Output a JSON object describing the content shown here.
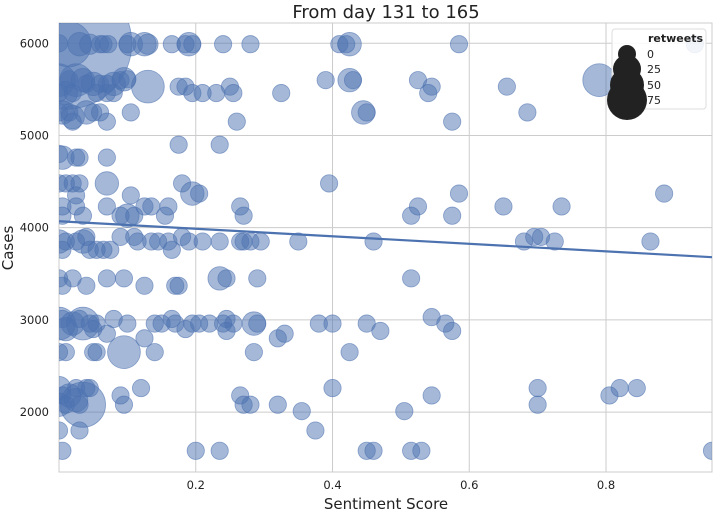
{
  "chart_data": {
    "type": "scatter",
    "title": "From day 131 to 165",
    "xlabel": "Sentiment Score",
    "ylabel": "Cases",
    "xlim": [
      0.0,
      0.955
    ],
    "ylim": [
      1350,
      6220
    ],
    "xticks": [
      0.2,
      0.4,
      0.6,
      0.8
    ],
    "xtick_labels": [
      "0.2",
      "0.4",
      "0.6",
      "0.8"
    ],
    "yticks": [
      2000,
      3000,
      4000,
      5000,
      6000
    ],
    "ytick_labels": [
      "2000",
      "3000",
      "4000",
      "5000",
      "6000"
    ],
    "grid": true,
    "color": "#4c72b0",
    "point_alpha": 0.5,
    "regression_line": {
      "x": [
        0.0,
        0.955
      ],
      "y": [
        4070,
        3680
      ]
    },
    "legend": {
      "title": "retweets",
      "placement": "top-right",
      "entries": [
        {
          "label": "0",
          "value": 0
        },
        {
          "label": "25",
          "value": 25
        },
        {
          "label": "50",
          "value": 50
        },
        {
          "label": "75",
          "value": 75
        }
      ]
    },
    "points": [
      {
        "x": 0.0,
        "y": 6000,
        "r": 3
      },
      {
        "x": 0.01,
        "y": 6000,
        "r": 40
      },
      {
        "x": 0.014,
        "y": 5990,
        "r": 12
      },
      {
        "x": 0.03,
        "y": 5990,
        "r": 5
      },
      {
        "x": 0.045,
        "y": 5990,
        "r": 4
      },
      {
        "x": 0.06,
        "y": 5990,
        "r": 3
      },
      {
        "x": 0.065,
        "y": 5990,
        "r": 3
      },
      {
        "x": 0.072,
        "y": 5990,
        "r": 3
      },
      {
        "x": 0.1,
        "y": 5990,
        "r": 3
      },
      {
        "x": 0.105,
        "y": 5990,
        "r": 5
      },
      {
        "x": 0.125,
        "y": 5990,
        "r": 5
      },
      {
        "x": 0.13,
        "y": 5990,
        "r": 4
      },
      {
        "x": 0.165,
        "y": 5990,
        "r": 3
      },
      {
        "x": 0.185,
        "y": 5990,
        "r": 3
      },
      {
        "x": 0.19,
        "y": 5990,
        "r": 5
      },
      {
        "x": 0.195,
        "y": 5990,
        "r": 3
      },
      {
        "x": 0.24,
        "y": 5990,
        "r": 3
      },
      {
        "x": 0.28,
        "y": 5990,
        "r": 3
      },
      {
        "x": 0.41,
        "y": 5990,
        "r": 3
      },
      {
        "x": 0.42,
        "y": 5990,
        "r": 3
      },
      {
        "x": 0.425,
        "y": 5990,
        "r": 5
      },
      {
        "x": 0.585,
        "y": 5990,
        "r": 3
      },
      {
        "x": 0.93,
        "y": 5990,
        "r": 3
      },
      {
        "x": 0.0,
        "y": 5600,
        "r": 8
      },
      {
        "x": 0.015,
        "y": 5610,
        "r": 3
      },
      {
        "x": 0.025,
        "y": 5600,
        "r": 8
      },
      {
        "x": 0.035,
        "y": 5600,
        "r": 5
      },
      {
        "x": 0.04,
        "y": 5560,
        "r": 3
      },
      {
        "x": 0.05,
        "y": 5560,
        "r": 5
      },
      {
        "x": 0.06,
        "y": 5560,
        "r": 3
      },
      {
        "x": 0.07,
        "y": 5560,
        "r": 3
      },
      {
        "x": 0.08,
        "y": 5560,
        "r": 5
      },
      {
        "x": 0.09,
        "y": 5600,
        "r": 3
      },
      {
        "x": 0.095,
        "y": 5610,
        "r": 5
      },
      {
        "x": 0.1,
        "y": 5610,
        "r": 3
      },
      {
        "x": 0.13,
        "y": 5530,
        "r": 8
      },
      {
        "x": 0.175,
        "y": 5530,
        "r": 3
      },
      {
        "x": 0.185,
        "y": 5530,
        "r": 3
      },
      {
        "x": 0.195,
        "y": 5460,
        "r": 3
      },
      {
        "x": 0.21,
        "y": 5460,
        "r": 3
      },
      {
        "x": 0.23,
        "y": 5460,
        "r": 3
      },
      {
        "x": 0.25,
        "y": 5530,
        "r": 3
      },
      {
        "x": 0.255,
        "y": 5460,
        "r": 3
      },
      {
        "x": 0.325,
        "y": 5460,
        "r": 3
      },
      {
        "x": 0.39,
        "y": 5600,
        "r": 3
      },
      {
        "x": 0.425,
        "y": 5600,
        "r": 5
      },
      {
        "x": 0.43,
        "y": 5600,
        "r": 3
      },
      {
        "x": 0.525,
        "y": 5600,
        "r": 3
      },
      {
        "x": 0.54,
        "y": 5460,
        "r": 3
      },
      {
        "x": 0.545,
        "y": 5530,
        "r": 3
      },
      {
        "x": 0.655,
        "y": 5530,
        "r": 3
      },
      {
        "x": 0.79,
        "y": 5600,
        "r": 8
      },
      {
        "x": 0.82,
        "y": 5600,
        "r": 3
      },
      {
        "x": 0.0,
        "y": 5460,
        "r": 3
      },
      {
        "x": 0.01,
        "y": 5460,
        "r": 5
      },
      {
        "x": 0.02,
        "y": 5460,
        "r": 3
      },
      {
        "x": 0.055,
        "y": 5460,
        "r": 3
      },
      {
        "x": 0.07,
        "y": 5460,
        "r": 3
      },
      {
        "x": 0.08,
        "y": 5460,
        "r": 3
      },
      {
        "x": 0.0,
        "y": 5250,
        "r": 3
      },
      {
        "x": 0.005,
        "y": 5250,
        "r": 5
      },
      {
        "x": 0.015,
        "y": 5250,
        "r": 3
      },
      {
        "x": 0.02,
        "y": 5200,
        "r": 5
      },
      {
        "x": 0.04,
        "y": 5250,
        "r": 5
      },
      {
        "x": 0.05,
        "y": 5250,
        "r": 3
      },
      {
        "x": 0.06,
        "y": 5250,
        "r": 3
      },
      {
        "x": 0.07,
        "y": 5150,
        "r": 3
      },
      {
        "x": 0.105,
        "y": 5250,
        "r": 3
      },
      {
        "x": 0.26,
        "y": 5150,
        "r": 3
      },
      {
        "x": 0.445,
        "y": 5250,
        "r": 5
      },
      {
        "x": 0.45,
        "y": 5250,
        "r": 3
      },
      {
        "x": 0.575,
        "y": 5150,
        "r": 3
      },
      {
        "x": 0.685,
        "y": 5250,
        "r": 3
      },
      {
        "x": 0.02,
        "y": 5150,
        "r": 3
      },
      {
        "x": 0.0,
        "y": 4800,
        "r": 3
      },
      {
        "x": 0.005,
        "y": 4760,
        "r": 5
      },
      {
        "x": 0.025,
        "y": 4760,
        "r": 3
      },
      {
        "x": 0.03,
        "y": 4760,
        "r": 3
      },
      {
        "x": 0.07,
        "y": 4760,
        "r": 3
      },
      {
        "x": 0.175,
        "y": 4900,
        "r": 3
      },
      {
        "x": 0.235,
        "y": 4900,
        "r": 3
      },
      {
        "x": 0.0,
        "y": 4480,
        "r": 3
      },
      {
        "x": 0.01,
        "y": 4480,
        "r": 3
      },
      {
        "x": 0.02,
        "y": 4480,
        "r": 3
      },
      {
        "x": 0.03,
        "y": 4480,
        "r": 3
      },
      {
        "x": 0.07,
        "y": 4480,
        "r": 5
      },
      {
        "x": 0.18,
        "y": 4480,
        "r": 3
      },
      {
        "x": 0.395,
        "y": 4480,
        "r": 3
      },
      {
        "x": 0.025,
        "y": 4350,
        "r": 3
      },
      {
        "x": 0.105,
        "y": 4350,
        "r": 3
      },
      {
        "x": 0.195,
        "y": 4370,
        "r": 5
      },
      {
        "x": 0.205,
        "y": 4370,
        "r": 3
      },
      {
        "x": 0.585,
        "y": 4370,
        "r": 3
      },
      {
        "x": 0.885,
        "y": 4370,
        "r": 3
      },
      {
        "x": 0.005,
        "y": 4230,
        "r": 3
      },
      {
        "x": 0.025,
        "y": 4230,
        "r": 3
      },
      {
        "x": 0.07,
        "y": 4230,
        "r": 3
      },
      {
        "x": 0.125,
        "y": 4230,
        "r": 3
      },
      {
        "x": 0.135,
        "y": 4230,
        "r": 3
      },
      {
        "x": 0.16,
        "y": 4230,
        "r": 3
      },
      {
        "x": 0.265,
        "y": 4230,
        "r": 3
      },
      {
        "x": 0.515,
        "y": 4130,
        "r": 3
      },
      {
        "x": 0.525,
        "y": 4230,
        "r": 3
      },
      {
        "x": 0.575,
        "y": 4130,
        "r": 3
      },
      {
        "x": 0.65,
        "y": 4230,
        "r": 3
      },
      {
        "x": 0.735,
        "y": 4230,
        "r": 3
      },
      {
        "x": 0.005,
        "y": 4130,
        "r": 3
      },
      {
        "x": 0.035,
        "y": 4130,
        "r": 3
      },
      {
        "x": 0.09,
        "y": 4130,
        "r": 3
      },
      {
        "x": 0.1,
        "y": 4130,
        "r": 5
      },
      {
        "x": 0.11,
        "y": 4130,
        "r": 3
      },
      {
        "x": 0.155,
        "y": 4130,
        "r": 3
      },
      {
        "x": 0.27,
        "y": 4130,
        "r": 3
      },
      {
        "x": 0.0,
        "y": 3850,
        "r": 5
      },
      {
        "x": 0.005,
        "y": 3760,
        "r": 3
      },
      {
        "x": 0.01,
        "y": 3850,
        "r": 3
      },
      {
        "x": 0.025,
        "y": 3850,
        "r": 3
      },
      {
        "x": 0.035,
        "y": 3850,
        "r": 5
      },
      {
        "x": 0.04,
        "y": 3900,
        "r": 3
      },
      {
        "x": 0.045,
        "y": 3760,
        "r": 3
      },
      {
        "x": 0.055,
        "y": 3760,
        "r": 3
      },
      {
        "x": 0.065,
        "y": 3760,
        "r": 3
      },
      {
        "x": 0.075,
        "y": 3760,
        "r": 3
      },
      {
        "x": 0.09,
        "y": 3900,
        "r": 3
      },
      {
        "x": 0.11,
        "y": 3900,
        "r": 3
      },
      {
        "x": 0.115,
        "y": 3850,
        "r": 3
      },
      {
        "x": 0.135,
        "y": 3850,
        "r": 3
      },
      {
        "x": 0.145,
        "y": 3850,
        "r": 3
      },
      {
        "x": 0.16,
        "y": 3850,
        "r": 3
      },
      {
        "x": 0.165,
        "y": 3760,
        "r": 3
      },
      {
        "x": 0.18,
        "y": 3900,
        "r": 3
      },
      {
        "x": 0.19,
        "y": 3850,
        "r": 3
      },
      {
        "x": 0.21,
        "y": 3850,
        "r": 3
      },
      {
        "x": 0.235,
        "y": 3850,
        "r": 3
      },
      {
        "x": 0.265,
        "y": 3850,
        "r": 3
      },
      {
        "x": 0.27,
        "y": 3850,
        "r": 3
      },
      {
        "x": 0.28,
        "y": 3850,
        "r": 3
      },
      {
        "x": 0.295,
        "y": 3850,
        "r": 3
      },
      {
        "x": 0.35,
        "y": 3850,
        "r": 3
      },
      {
        "x": 0.46,
        "y": 3850,
        "r": 3
      },
      {
        "x": 0.68,
        "y": 3850,
        "r": 3
      },
      {
        "x": 0.695,
        "y": 3900,
        "r": 3
      },
      {
        "x": 0.705,
        "y": 3900,
        "r": 3
      },
      {
        "x": 0.725,
        "y": 3850,
        "r": 3
      },
      {
        "x": 0.865,
        "y": 3850,
        "r": 3
      },
      {
        "x": 0.0,
        "y": 3450,
        "r": 3
      },
      {
        "x": 0.005,
        "y": 3370,
        "r": 3
      },
      {
        "x": 0.02,
        "y": 3450,
        "r": 3
      },
      {
        "x": 0.04,
        "y": 3370,
        "r": 3
      },
      {
        "x": 0.07,
        "y": 3450,
        "r": 3
      },
      {
        "x": 0.095,
        "y": 3450,
        "r": 3
      },
      {
        "x": 0.125,
        "y": 3370,
        "r": 3
      },
      {
        "x": 0.17,
        "y": 3370,
        "r": 3
      },
      {
        "x": 0.175,
        "y": 3370,
        "r": 3
      },
      {
        "x": 0.235,
        "y": 3450,
        "r": 5
      },
      {
        "x": 0.245,
        "y": 3450,
        "r": 3
      },
      {
        "x": 0.29,
        "y": 3450,
        "r": 3
      },
      {
        "x": 0.515,
        "y": 3450,
        "r": 3
      },
      {
        "x": 0.0,
        "y": 2960,
        "r": 8
      },
      {
        "x": 0.005,
        "y": 3010,
        "r": 3
      },
      {
        "x": 0.01,
        "y": 2900,
        "r": 5
      },
      {
        "x": 0.02,
        "y": 2960,
        "r": 5
      },
      {
        "x": 0.03,
        "y": 3010,
        "r": 3
      },
      {
        "x": 0.035,
        "y": 2960,
        "r": 8
      },
      {
        "x": 0.045,
        "y": 2960,
        "r": 3
      },
      {
        "x": 0.05,
        "y": 2900,
        "r": 3
      },
      {
        "x": 0.055,
        "y": 2960,
        "r": 3
      },
      {
        "x": 0.07,
        "y": 2850,
        "r": 3
      },
      {
        "x": 0.08,
        "y": 3010,
        "r": 3
      },
      {
        "x": 0.1,
        "y": 2960,
        "r": 3
      },
      {
        "x": 0.125,
        "y": 2800,
        "r": 3
      },
      {
        "x": 0.14,
        "y": 2960,
        "r": 3
      },
      {
        "x": 0.15,
        "y": 2960,
        "r": 3
      },
      {
        "x": 0.165,
        "y": 3010,
        "r": 3
      },
      {
        "x": 0.17,
        "y": 2960,
        "r": 3
      },
      {
        "x": 0.185,
        "y": 2900,
        "r": 3
      },
      {
        "x": 0.195,
        "y": 2960,
        "r": 3
      },
      {
        "x": 0.205,
        "y": 2960,
        "r": 3
      },
      {
        "x": 0.22,
        "y": 2960,
        "r": 3
      },
      {
        "x": 0.24,
        "y": 2960,
        "r": 3
      },
      {
        "x": 0.245,
        "y": 3010,
        "r": 3
      },
      {
        "x": 0.255,
        "y": 2960,
        "r": 3
      },
      {
        "x": 0.285,
        "y": 2960,
        "r": 5
      },
      {
        "x": 0.29,
        "y": 2960,
        "r": 3
      },
      {
        "x": 0.32,
        "y": 2800,
        "r": 3
      },
      {
        "x": 0.33,
        "y": 2850,
        "r": 3
      },
      {
        "x": 0.38,
        "y": 2960,
        "r": 3
      },
      {
        "x": 0.4,
        "y": 2960,
        "r": 3
      },
      {
        "x": 0.45,
        "y": 2960,
        "r": 3
      },
      {
        "x": 0.47,
        "y": 2880,
        "r": 3
      },
      {
        "x": 0.545,
        "y": 3030,
        "r": 3
      },
      {
        "x": 0.565,
        "y": 2960,
        "r": 3
      },
      {
        "x": 0.575,
        "y": 2880,
        "r": 3
      },
      {
        "x": 0.245,
        "y": 2880,
        "r": 3
      },
      {
        "x": 0.0,
        "y": 2650,
        "r": 3
      },
      {
        "x": 0.01,
        "y": 2650,
        "r": 3
      },
      {
        "x": 0.05,
        "y": 2650,
        "r": 3
      },
      {
        "x": 0.055,
        "y": 2650,
        "r": 3
      },
      {
        "x": 0.095,
        "y": 2650,
        "r": 8
      },
      {
        "x": 0.14,
        "y": 2650,
        "r": 3
      },
      {
        "x": 0.285,
        "y": 2650,
        "r": 3
      },
      {
        "x": 0.425,
        "y": 2650,
        "r": 3
      },
      {
        "x": 0.0,
        "y": 2260,
        "r": 5
      },
      {
        "x": 0.005,
        "y": 2180,
        "r": 3
      },
      {
        "x": 0.015,
        "y": 2180,
        "r": 5
      },
      {
        "x": 0.025,
        "y": 2260,
        "r": 3
      },
      {
        "x": 0.04,
        "y": 2260,
        "r": 3
      },
      {
        "x": 0.045,
        "y": 2260,
        "r": 3
      },
      {
        "x": 0.09,
        "y": 2180,
        "r": 3
      },
      {
        "x": 0.12,
        "y": 2260,
        "r": 3
      },
      {
        "x": 0.265,
        "y": 2180,
        "r": 3
      },
      {
        "x": 0.4,
        "y": 2260,
        "r": 3
      },
      {
        "x": 0.545,
        "y": 2180,
        "r": 3
      },
      {
        "x": 0.7,
        "y": 2260,
        "r": 3
      },
      {
        "x": 0.805,
        "y": 2180,
        "r": 3
      },
      {
        "x": 0.82,
        "y": 2260,
        "r": 3
      },
      {
        "x": 0.845,
        "y": 2260,
        "r": 3
      },
      {
        "x": 0.0,
        "y": 2080,
        "r": 5
      },
      {
        "x": 0.01,
        "y": 2080,
        "r": 3
      },
      {
        "x": 0.025,
        "y": 2130,
        "r": 5
      },
      {
        "x": 0.03,
        "y": 2080,
        "r": 3
      },
      {
        "x": 0.035,
        "y": 2080,
        "r": 12
      },
      {
        "x": 0.095,
        "y": 2080,
        "r": 3
      },
      {
        "x": 0.27,
        "y": 2080,
        "r": 3
      },
      {
        "x": 0.28,
        "y": 2080,
        "r": 3
      },
      {
        "x": 0.32,
        "y": 2080,
        "r": 3
      },
      {
        "x": 0.355,
        "y": 2010,
        "r": 3
      },
      {
        "x": 0.505,
        "y": 2010,
        "r": 3
      },
      {
        "x": 0.7,
        "y": 2080,
        "r": 3
      },
      {
        "x": 0.0,
        "y": 1800,
        "r": 3
      },
      {
        "x": 0.03,
        "y": 1800,
        "r": 3
      },
      {
        "x": 0.375,
        "y": 1800,
        "r": 3
      },
      {
        "x": 0.005,
        "y": 1580,
        "r": 3
      },
      {
        "x": 0.2,
        "y": 1580,
        "r": 3
      },
      {
        "x": 0.235,
        "y": 1580,
        "r": 3
      },
      {
        "x": 0.45,
        "y": 1580,
        "r": 3
      },
      {
        "x": 0.46,
        "y": 1580,
        "r": 3
      },
      {
        "x": 0.515,
        "y": 1580,
        "r": 3
      },
      {
        "x": 0.53,
        "y": 1580,
        "r": 3
      },
      {
        "x": 0.955,
        "y": 1580,
        "r": 3
      }
    ]
  }
}
